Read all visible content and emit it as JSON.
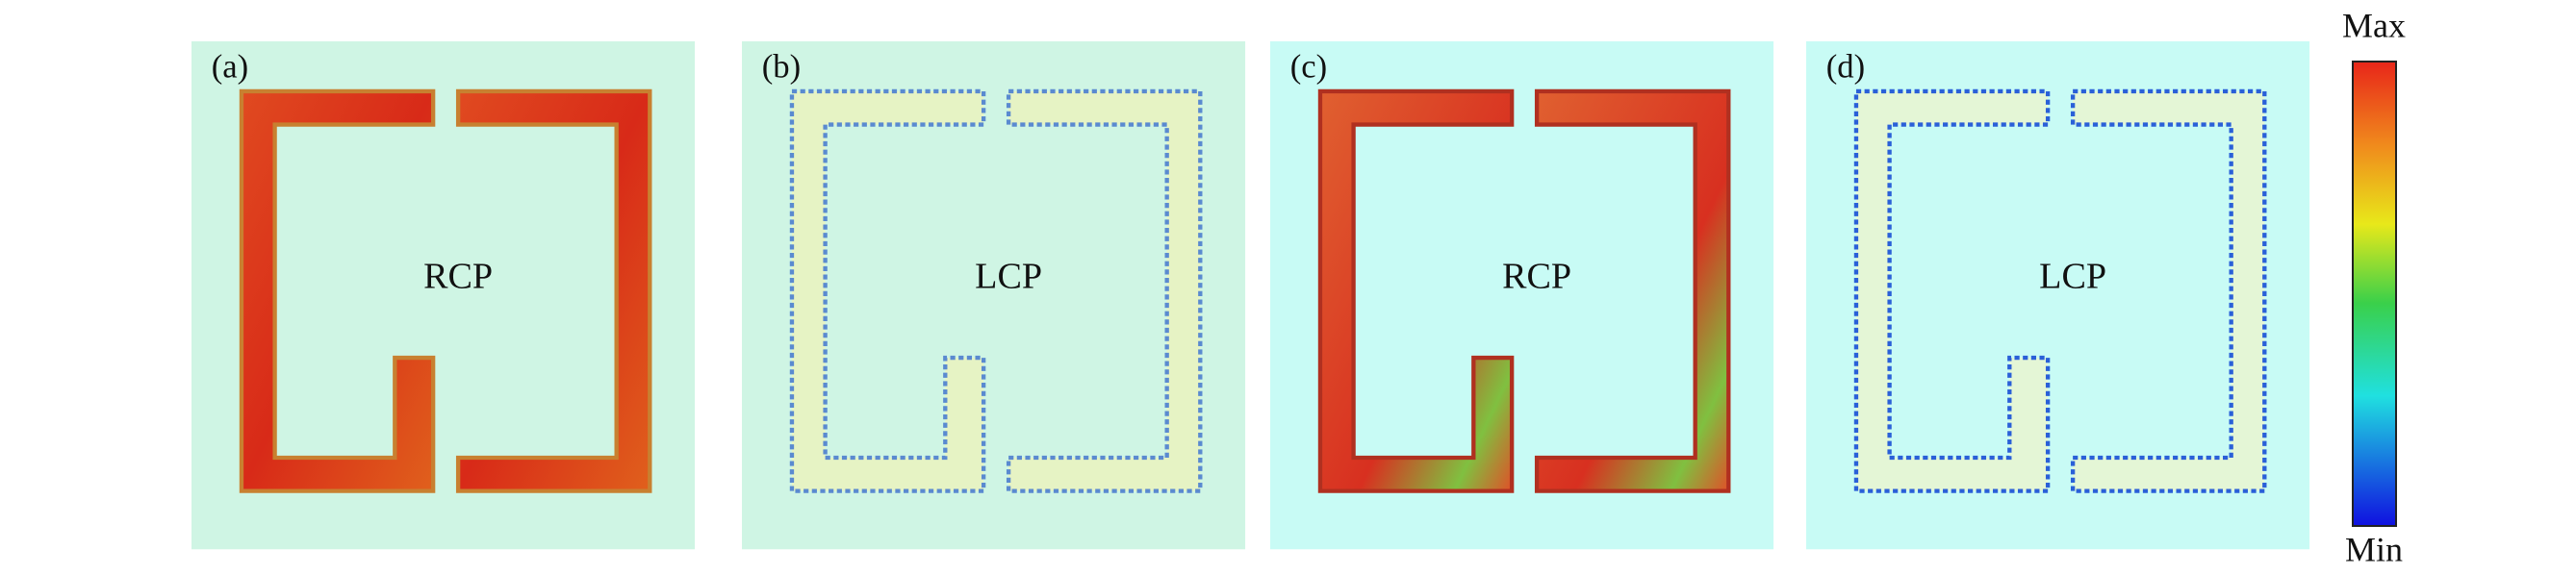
{
  "panels": [
    {
      "label": "(a)",
      "text": "RCP"
    },
    {
      "label": "(b)",
      "text": "LCP"
    },
    {
      "label": "(c)",
      "text": "RCP"
    },
    {
      "label": "(d)",
      "text": "LCP"
    }
  ],
  "colorbar": {
    "max": "Max",
    "min": "Min"
  }
}
